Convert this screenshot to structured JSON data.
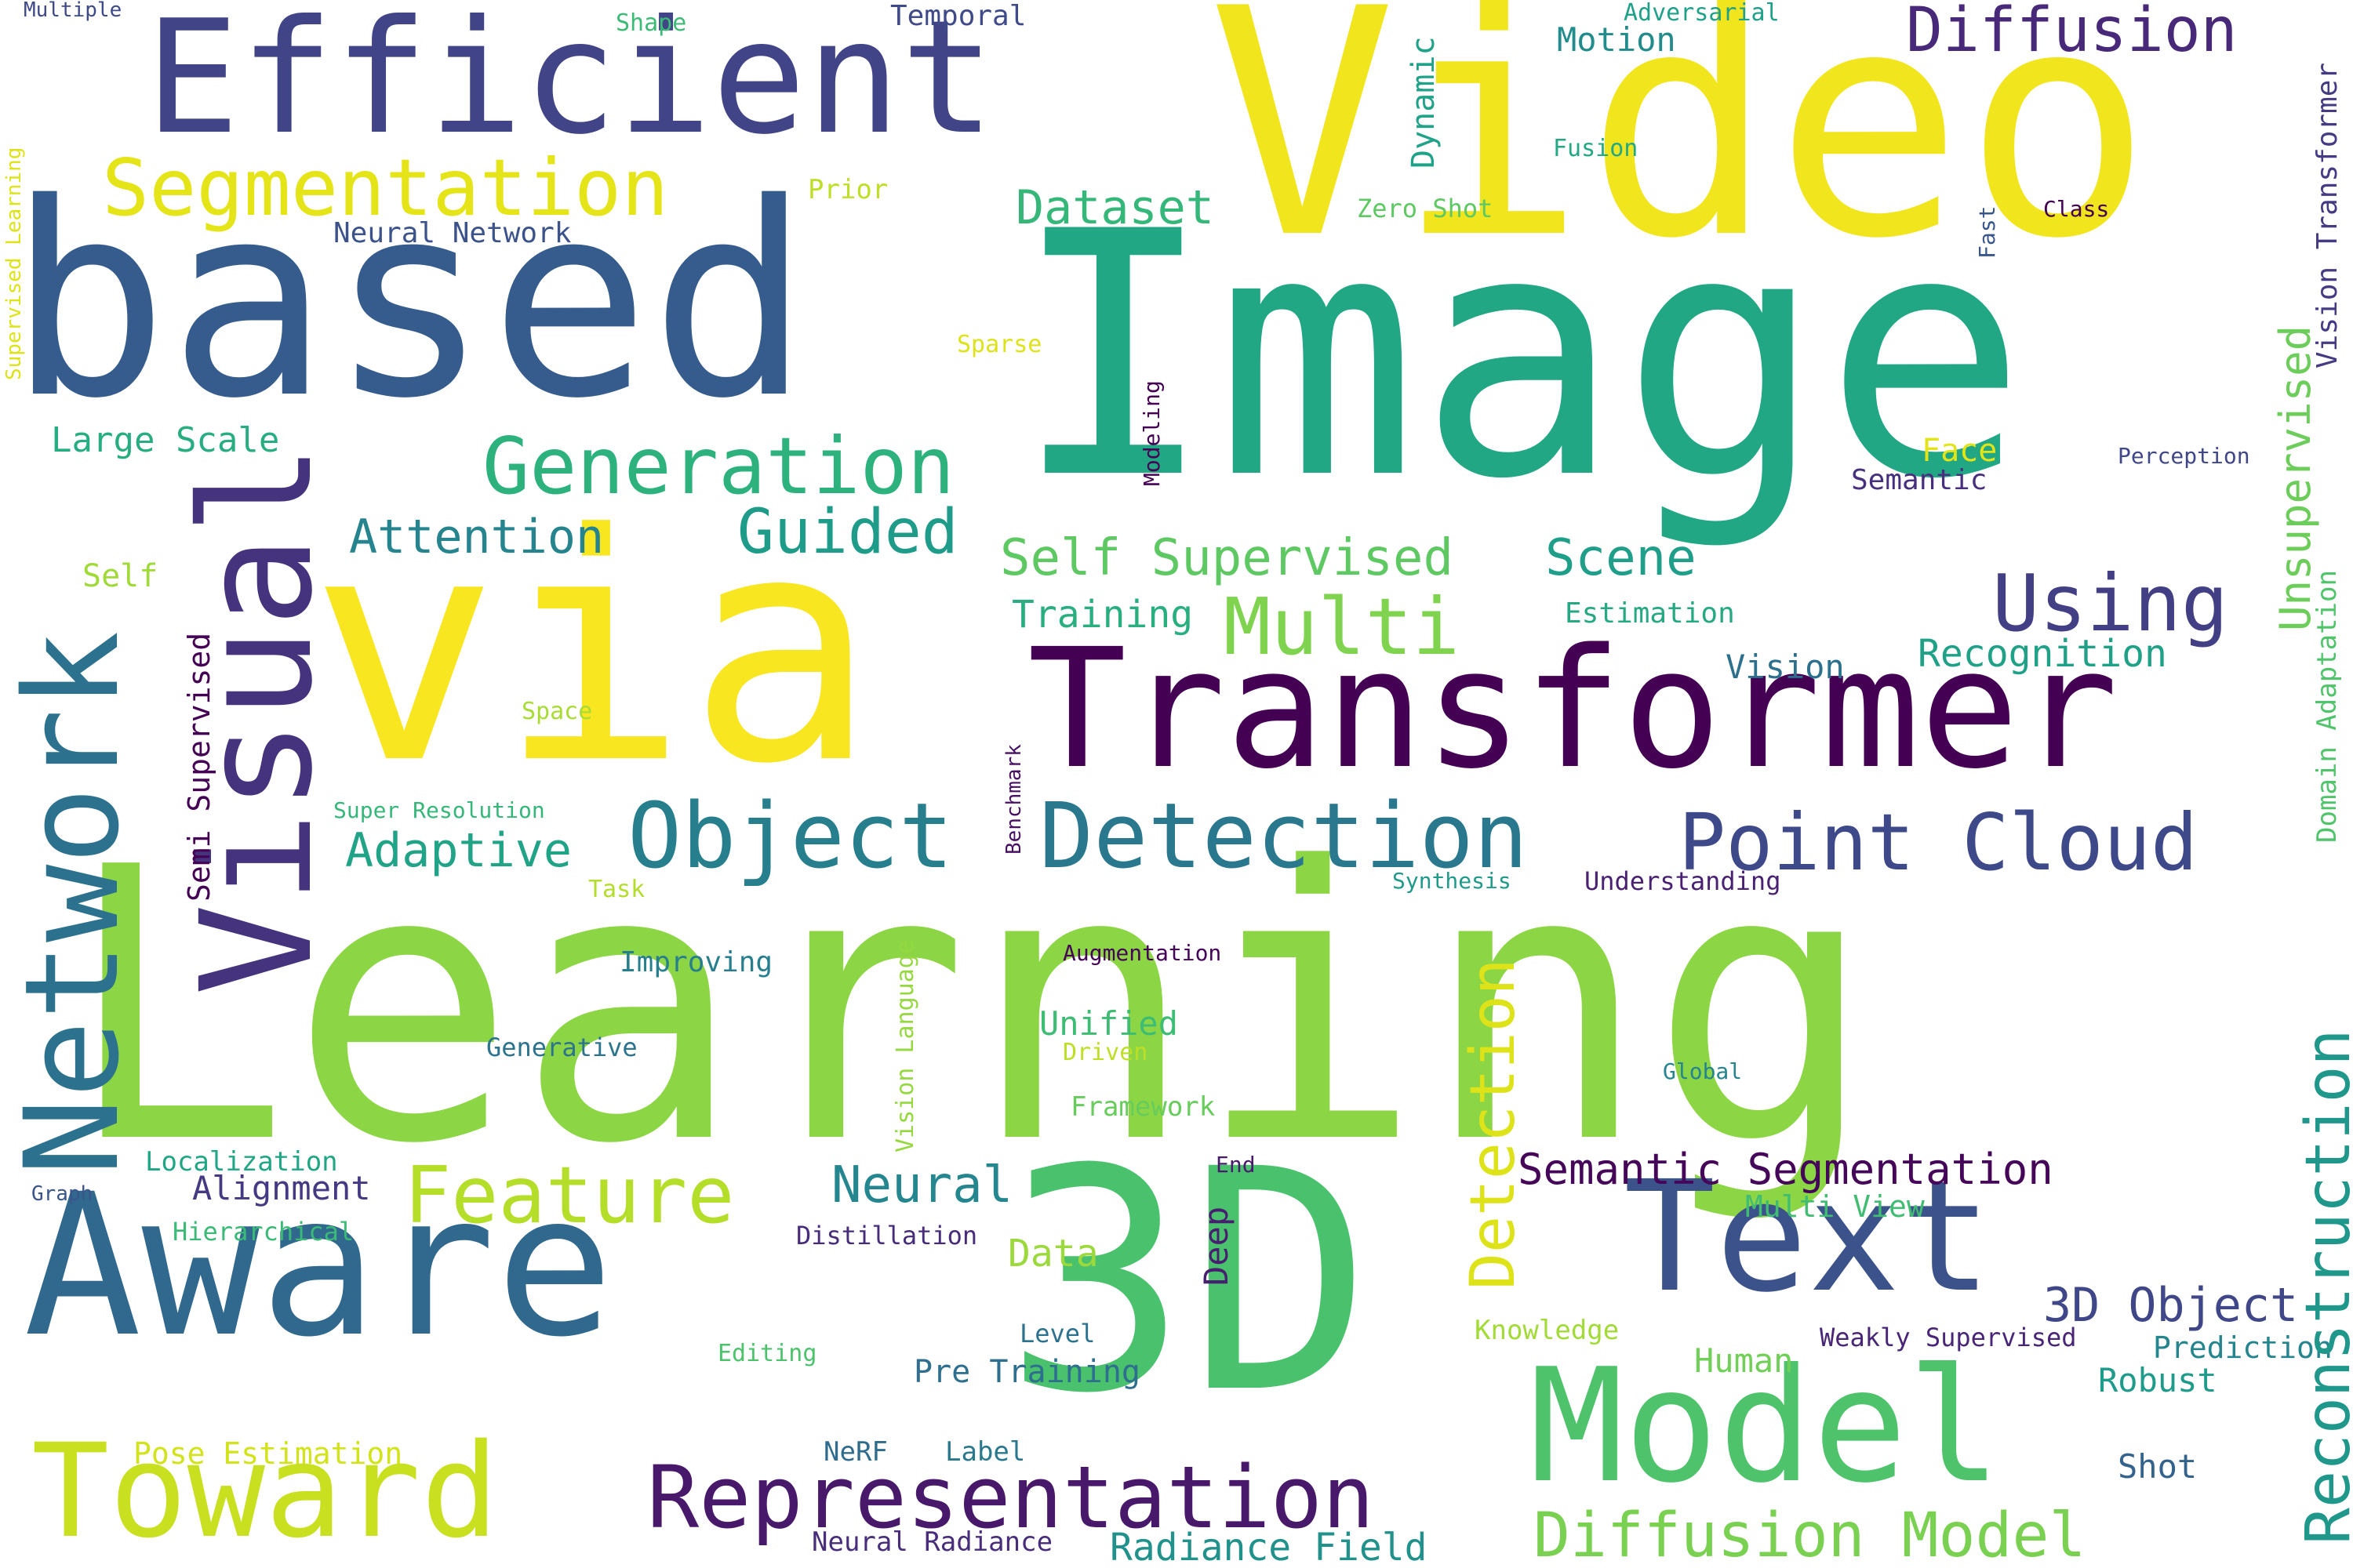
{
  "word_cloud": {
    "palette": "viridis",
    "words": [
      {
        "text": "Learning",
        "color": "#8cd645"
      },
      {
        "text": "Image",
        "color": "#22a785"
      },
      {
        "text": "Video",
        "color": "#f1e51d"
      },
      {
        "text": "via",
        "color": "#f8e621"
      },
      {
        "text": "based",
        "color": "#365c8d"
      },
      {
        "text": "Transformer",
        "color": "#440154"
      },
      {
        "text": "Aware",
        "color": "#31688e"
      },
      {
        "text": "3D",
        "color": "#4ac16d"
      },
      {
        "text": "Efficient",
        "color": "#414487"
      },
      {
        "text": "Model",
        "color": "#4ec36b"
      },
      {
        "text": "Visual",
        "color": "#46337e"
      },
      {
        "text": "Network",
        "color": "#2c728e"
      },
      {
        "text": "Text",
        "color": "#3b528b"
      },
      {
        "text": "Toward",
        "color": "#c8e020"
      },
      {
        "text": "Representation",
        "color": "#48186a"
      },
      {
        "text": "Object",
        "color": "#277f8e"
      },
      {
        "text": "Detection",
        "color": "#2a788e"
      },
      {
        "text": "Point Cloud",
        "color": "#3e4989"
      },
      {
        "text": "Segmentation",
        "color": "#e5e419"
      },
      {
        "text": "Generation",
        "color": "#2db27d"
      },
      {
        "text": "Feature",
        "color": "#b5de2b"
      },
      {
        "text": "Diffusion Model",
        "color": "#7ad151"
      },
      {
        "text": "Reconstruction",
        "color": "#1f988b"
      },
      {
        "text": "Diffusion",
        "color": "#482878"
      },
      {
        "text": "Using",
        "color": "#423f85"
      },
      {
        "text": "Multi",
        "color": "#7fd34e"
      },
      {
        "text": "Guided",
        "color": "#1e9c89"
      },
      {
        "text": "Detection",
        "color": "#dde318"
      },
      {
        "text": "Neural",
        "color": "#24868e"
      },
      {
        "text": "Self Supervised",
        "color": "#5ec962"
      },
      {
        "text": "Scene",
        "color": "#1f9e89"
      },
      {
        "text": "Attention",
        "color": "#25848e"
      },
      {
        "text": "Adaptive",
        "color": "#20a386"
      },
      {
        "text": "Dataset",
        "color": "#35b779"
      },
      {
        "text": "Unsupervised",
        "color": "#6ccd5a"
      },
      {
        "text": "Semantic Segmentation",
        "color": "#450559"
      },
      {
        "text": "Radiance Field",
        "color": "#21918c"
      },
      {
        "text": "3D Object",
        "color": "#3f4788"
      },
      {
        "text": "Large Scale",
        "color": "#27ad81"
      },
      {
        "text": "Recognition",
        "color": "#1fa188"
      },
      {
        "text": "Data",
        "color": "#9bd93c"
      },
      {
        "text": "Alignment",
        "color": "#443983"
      },
      {
        "text": "Training",
        "color": "#29af7f"
      },
      {
        "text": "Pose Estimation",
        "color": "#d2e21b"
      },
      {
        "text": "Human",
        "color": "#70cf57"
      },
      {
        "text": "Robust",
        "color": "#1e9b8a"
      },
      {
        "text": "Motion",
        "color": "#228c8d"
      },
      {
        "text": "Vision",
        "color": "#2d708e"
      },
      {
        "text": "Multi View",
        "color": "#40bd72"
      },
      {
        "text": "Neural Network",
        "color": "#3b528b"
      },
      {
        "text": "Estimation",
        "color": "#26a982"
      },
      {
        "text": "Pre Training",
        "color": "#2e6e8e"
      },
      {
        "text": "Prediction",
        "color": "#25858e"
      },
      {
        "text": "Shot",
        "color": "#33638d"
      },
      {
        "text": "Unified",
        "color": "#3dbc74"
      },
      {
        "text": "Semantic",
        "color": "#46307e"
      },
      {
        "text": "Localization",
        "color": "#21a685"
      },
      {
        "text": "Deep",
        "color": "#481f70"
      },
      {
        "text": "Framework",
        "color": "#67cc5c"
      },
      {
        "text": "Knowledge",
        "color": "#a2da37"
      },
      {
        "text": "Weakly Supervised",
        "color": "#482576"
      },
      {
        "text": "Self",
        "color": "#a0da39"
      },
      {
        "text": "Semi Supervised",
        "color": "#440154"
      },
      {
        "text": "Face",
        "color": "#e2e418"
      },
      {
        "text": "Neural Radiance",
        "color": "#472d7b"
      },
      {
        "text": "Hierarchical",
        "color": "#3aba76"
      },
      {
        "text": "Distillation",
        "color": "#472c7a"
      },
      {
        "text": "Improving",
        "color": "#277f8e"
      },
      {
        "text": "Level",
        "color": "#2c728e"
      },
      {
        "text": "Label",
        "color": "#2a788e"
      },
      {
        "text": "NeRF",
        "color": "#2f6c8e"
      },
      {
        "text": "Domain Adaptation",
        "color": "#50c46a"
      },
      {
        "text": "Vision Transformer",
        "color": "#443b84"
      },
      {
        "text": "Supervised Learning",
        "color": "#dde318"
      },
      {
        "text": "Dynamic",
        "color": "#1fa287"
      },
      {
        "text": "Vision Language",
        "color": "#95d840"
      },
      {
        "text": "Generative",
        "color": "#2c738e"
      },
      {
        "text": "Editing",
        "color": "#4cc26c"
      },
      {
        "text": "Understanding",
        "color": "#482173"
      },
      {
        "text": "Temporal",
        "color": "#3e4a89"
      },
      {
        "text": "Adversarial",
        "color": "#1fa088"
      },
      {
        "text": "Fusion",
        "color": "#22a884"
      },
      {
        "text": "Zero Shot",
        "color": "#5ec962"
      },
      {
        "text": "Prior",
        "color": "#bddf26"
      },
      {
        "text": "Sparse",
        "color": "#dde318"
      },
      {
        "text": "Modeling",
        "color": "#440154"
      },
      {
        "text": "Perception",
        "color": "#3f4788"
      },
      {
        "text": "Super Resolution",
        "color": "#35b779"
      },
      {
        "text": "Space",
        "color": "#a8db34"
      },
      {
        "text": "Task",
        "color": "#b2dd2d"
      },
      {
        "text": "Benchmark",
        "color": "#471063"
      },
      {
        "text": "Synthesis",
        "color": "#1f9a8a"
      },
      {
        "text": "Augmentation",
        "color": "#450457"
      },
      {
        "text": "Driven",
        "color": "#bddf26"
      },
      {
        "text": "Global",
        "color": "#25848e"
      },
      {
        "text": "End",
        "color": "#481b6d"
      },
      {
        "text": "Graph",
        "color": "#3a548c"
      },
      {
        "text": "Multiple",
        "color": "#3e4989"
      },
      {
        "text": "Shape",
        "color": "#3bbb75"
      },
      {
        "text": "Fast",
        "color": "#39568c"
      },
      {
        "text": "Class",
        "color": "#440154"
      }
    ]
  }
}
